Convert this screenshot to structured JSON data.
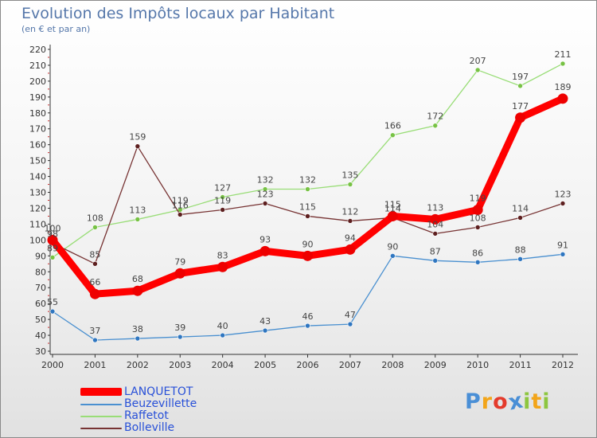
{
  "title": "Evolution des Impôts locaux par Habitant",
  "subtitle": "(en € et par an)",
  "brand": {
    "name": "Proxiti",
    "letters": [
      {
        "ch": "P",
        "color": "#4a8fd6"
      },
      {
        "ch": "r",
        "color": "#f2a51a"
      },
      {
        "ch": "o",
        "color": "#e43b2c"
      },
      {
        "ch": "x",
        "color": "#4a8fd6"
      },
      {
        "ch": "i",
        "color": "#8dc63f"
      },
      {
        "ch": "t",
        "color": "#f2a51a"
      },
      {
        "ch": "i",
        "color": "#8dc63f"
      }
    ]
  },
  "chart_data": {
    "type": "line",
    "title": "Evolution des Impôts locaux par Habitant",
    "subtitle": "(en € et par an)",
    "x": [
      "2000",
      "2001",
      "2002",
      "2003",
      "2004",
      "2005",
      "2006",
      "2007",
      "2008",
      "2009",
      "2010",
      "2011",
      "2012"
    ],
    "ylim": [
      30,
      220
    ],
    "yticks": [
      30,
      40,
      50,
      60,
      70,
      80,
      90,
      100,
      110,
      120,
      130,
      140,
      150,
      160,
      170,
      180,
      190,
      200,
      210,
      220
    ],
    "grid": false,
    "legend": "bottom-left",
    "series": [
      {
        "name": "Beuzevillette",
        "color": "#4a90d0",
        "marker": "#2f76c0",
        "values": [
          55,
          37,
          38,
          39,
          40,
          43,
          46,
          47,
          90,
          87,
          86,
          88,
          91
        ]
      },
      {
        "name": "Raffetot",
        "color": "#99dd77",
        "marker": "#77c244",
        "values": [
          89,
          108,
          113,
          119,
          127,
          132,
          132,
          135,
          166,
          172,
          207,
          197,
          211
        ]
      },
      {
        "name": "Bolleville",
        "color": "#773333",
        "marker": "#5d1f1f",
        "values": [
          98,
          85,
          159,
          116,
          119,
          123,
          115,
          112,
          114,
          104,
          108,
          114,
          123
        ]
      },
      {
        "name": "LANQUETOT",
        "color": "#ff0000",
        "marker": "#ee0000",
        "values": [
          100,
          66,
          68,
          79,
          83,
          93,
          90,
          94,
          115,
          113,
          119,
          177,
          189
        ]
      }
    ]
  }
}
